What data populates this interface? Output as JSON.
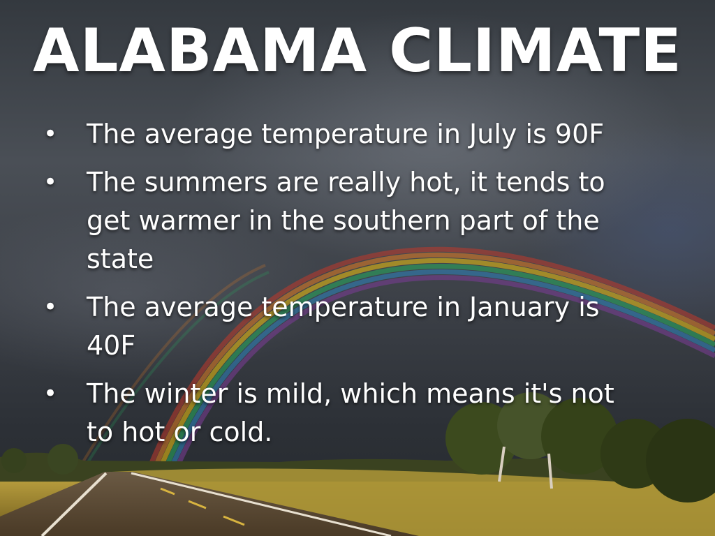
{
  "slide": {
    "title": "ALABAMA CLIMATE",
    "bullet_glyph": "•",
    "bullets": [
      "The average temperature in July is 90F",
      "The summers are really hot, it tends to get warmer in the southern part of the state",
      "The average temperature in January is 40F",
      "The winter is mild, which means it's not to hot or cold."
    ]
  },
  "background": {
    "description_colors": {
      "sky": "#3d4148",
      "grass": "#8a7a2a",
      "road": "#5a4a34"
    }
  }
}
